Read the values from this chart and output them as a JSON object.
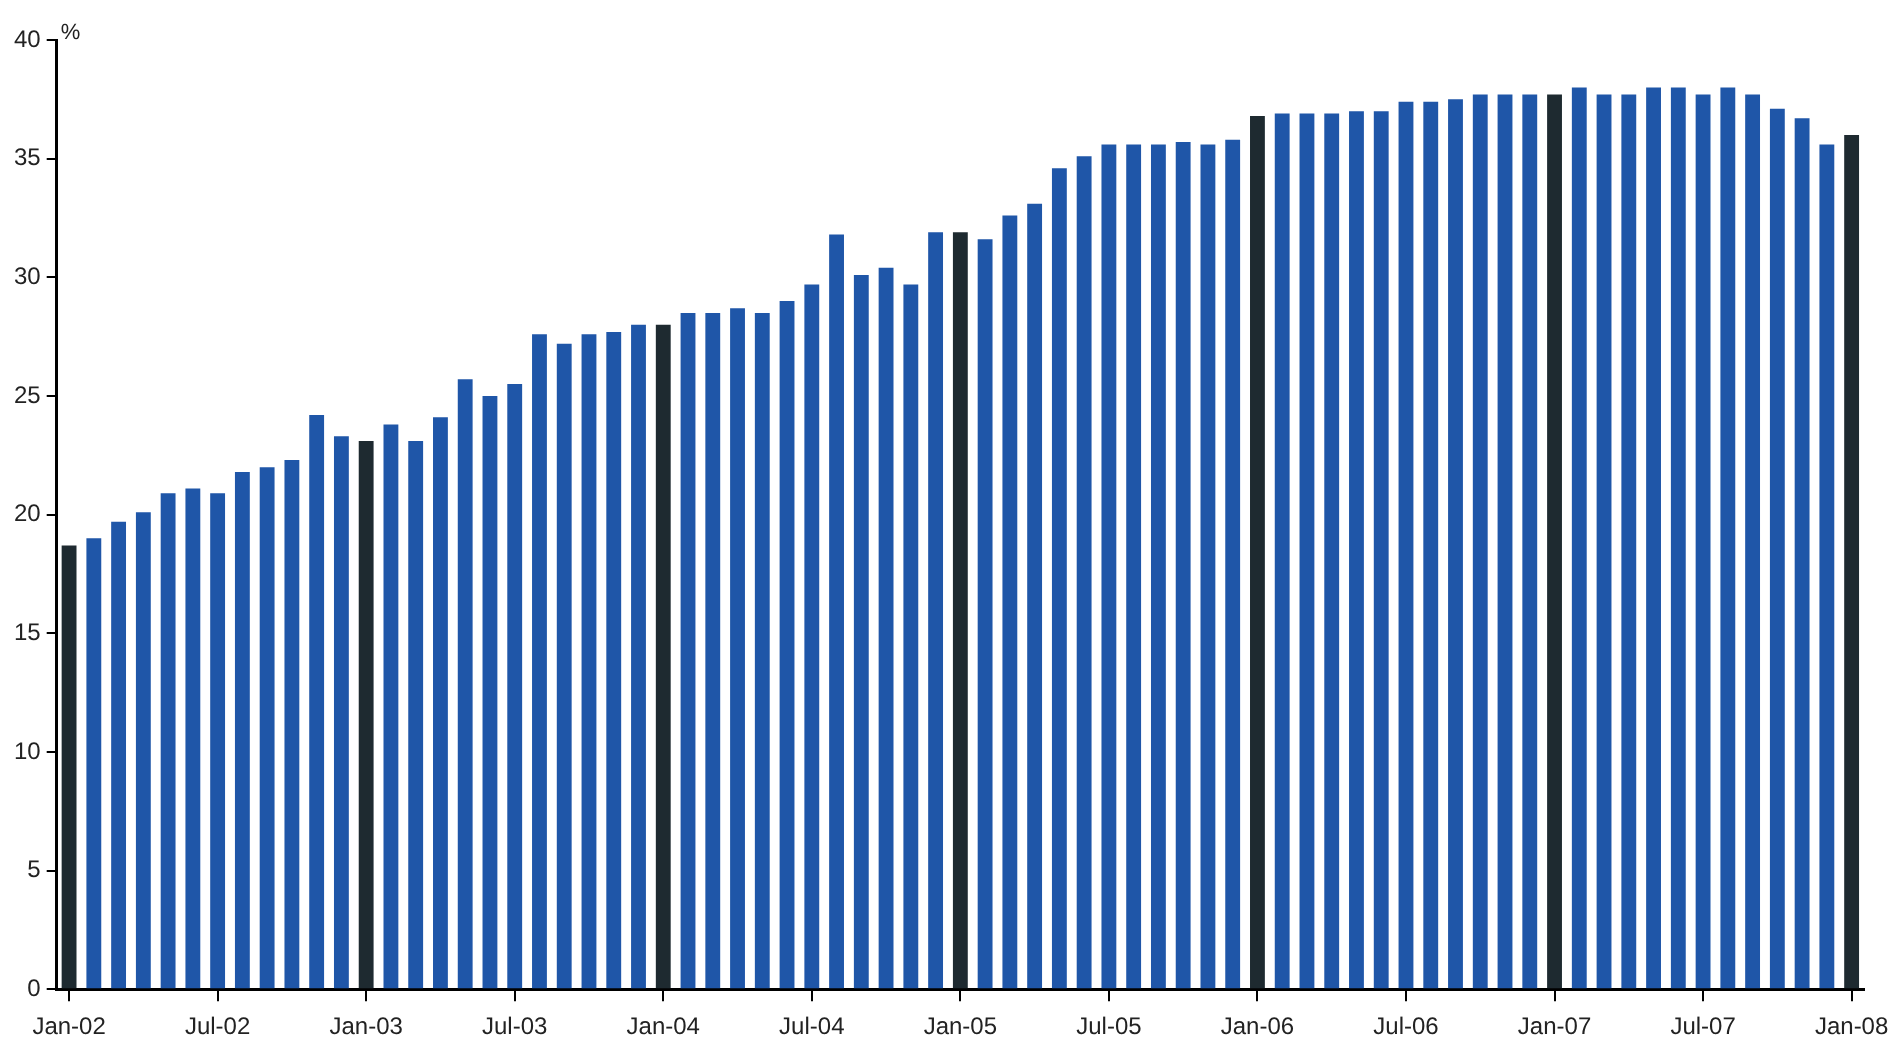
{
  "chart_data": {
    "type": "bar",
    "ylabel": "%",
    "categories": [
      "Jan-02",
      null,
      null,
      null,
      null,
      null,
      "Jul-02",
      null,
      null,
      null,
      null,
      null,
      "Jan-03",
      null,
      null,
      null,
      null,
      null,
      "Jul-03",
      null,
      null,
      null,
      null,
      null,
      "Jan-04",
      null,
      null,
      null,
      null,
      null,
      "Jul-04",
      null,
      null,
      null,
      null,
      null,
      "Jan-05",
      null,
      null,
      null,
      null,
      null,
      "Jul-05",
      null,
      null,
      null,
      null,
      null,
      "Jan-06",
      null,
      null,
      null,
      null,
      null,
      "Jul-06",
      null,
      null,
      null,
      null,
      null,
      "Jan-07",
      null,
      null,
      null,
      null,
      null,
      "Jul-07",
      null,
      null,
      null,
      null,
      null,
      "Jan-08"
    ],
    "values": [
      18.7,
      19.0,
      19.7,
      20.1,
      20.9,
      21.1,
      20.9,
      21.8,
      22.0,
      22.3,
      24.2,
      23.3,
      23.1,
      23.8,
      23.1,
      24.1,
      25.7,
      25.0,
      25.5,
      27.6,
      27.2,
      27.6,
      27.7,
      28.0,
      28.0,
      28.5,
      28.5,
      28.7,
      28.5,
      29.0,
      29.7,
      31.8,
      30.1,
      30.4,
      29.7,
      31.9,
      31.9,
      31.6,
      32.6,
      33.1,
      34.6,
      35.1,
      35.6,
      35.6,
      35.6,
      35.7,
      35.6,
      35.8,
      36.8,
      36.9,
      36.9,
      36.9,
      37.0,
      37.0,
      37.4,
      37.4,
      37.5,
      37.7,
      37.7,
      37.7,
      37.7,
      38.0,
      37.7,
      37.7,
      38.0,
      38.0,
      37.7,
      38.0,
      37.7,
      37.1,
      36.7,
      35.6,
      36.0
    ],
    "colors": [
      "#1e2a30",
      "#1f56a8",
      "#1f56a8",
      "#1f56a8",
      "#1f56a8",
      "#1f56a8",
      "#1f56a8",
      "#1f56a8",
      "#1f56a8",
      "#1f56a8",
      "#1f56a8",
      "#1f56a8",
      "#1e2a30",
      "#1f56a8",
      "#1f56a8",
      "#1f56a8",
      "#1f56a8",
      "#1f56a8",
      "#1f56a8",
      "#1f56a8",
      "#1f56a8",
      "#1f56a8",
      "#1f56a8",
      "#1f56a8",
      "#1e2a30",
      "#1f56a8",
      "#1f56a8",
      "#1f56a8",
      "#1f56a8",
      "#1f56a8",
      "#1f56a8",
      "#1f56a8",
      "#1f56a8",
      "#1f56a8",
      "#1f56a8",
      "#1f56a8",
      "#1e2a30",
      "#1f56a8",
      "#1f56a8",
      "#1f56a8",
      "#1f56a8",
      "#1f56a8",
      "#1f56a8",
      "#1f56a8",
      "#1f56a8",
      "#1f56a8",
      "#1f56a8",
      "#1f56a8",
      "#1e2a30",
      "#1f56a8",
      "#1f56a8",
      "#1f56a8",
      "#1f56a8",
      "#1f56a8",
      "#1f56a8",
      "#1f56a8",
      "#1f56a8",
      "#1f56a8",
      "#1f56a8",
      "#1f56a8",
      "#1e2a30",
      "#1f56a8",
      "#1f56a8",
      "#1f56a8",
      "#1f56a8",
      "#1f56a8",
      "#1f56a8",
      "#1f56a8",
      "#1f56a8",
      "#1f56a8",
      "#1f56a8",
      "#1f56a8",
      "#1e2a30"
    ],
    "ylim": [
      0,
      40
    ],
    "yticks": [
      0,
      5,
      10,
      15,
      20,
      25,
      30,
      35,
      40
    ],
    "grid": false,
    "legend": false
  }
}
